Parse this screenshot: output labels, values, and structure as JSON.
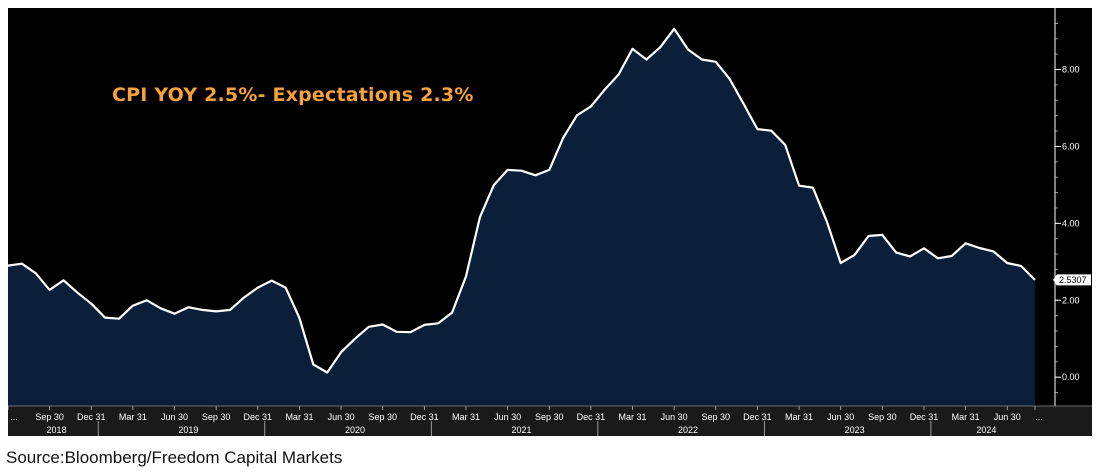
{
  "title": "CPI YOY 2.5%- Expectations 2.3%",
  "source": "Source:Bloomberg/Freedom Capital Markets",
  "colors": {
    "background": "#000000",
    "area_fill": "#0b1e3a",
    "line": "#ffffff",
    "title": "#f6a13a",
    "axis_band": "#1a1a1a"
  },
  "chart_data": {
    "type": "area",
    "series": [
      {
        "values": [
          2.9,
          2.95,
          2.7,
          2.27,
          2.52,
          2.2,
          1.91,
          1.55,
          1.52,
          1.86,
          2.0,
          1.79,
          1.65,
          1.82,
          1.75,
          1.71,
          1.75,
          2.07,
          2.33,
          2.51,
          2.33,
          1.54,
          0.33,
          0.12,
          0.65,
          1.0,
          1.31,
          1.37,
          1.18,
          1.17,
          1.36,
          1.4,
          1.68,
          2.62,
          4.16,
          4.99,
          5.39,
          5.37,
          5.25,
          5.39,
          6.22,
          6.81,
          7.04,
          7.48,
          7.87,
          8.54,
          8.26,
          8.58,
          9.06,
          8.52,
          8.26,
          8.2,
          7.75,
          7.11,
          6.45,
          6.41,
          6.04,
          4.98,
          4.93,
          4.05,
          2.97,
          3.18,
          3.67,
          3.7,
          3.24,
          3.14,
          3.35,
          3.09,
          3.15,
          3.48,
          3.36,
          3.27,
          2.97,
          2.89,
          2.53
        ]
      }
    ],
    "x_start": "2018-06",
    "x_end": "2024-08",
    "x_frequency": "monthly",
    "x_tick_labels": [
      "...",
      "Sep 30",
      "Dec 31",
      "Mar 31",
      "Jun 30",
      "Sep 30",
      "Dec 31",
      "Mar 31",
      "Jun 30",
      "Sep 30",
      "Dec 31",
      "Mar 31",
      "Jun 30",
      "Sep 30",
      "Dec 31",
      "Mar 31",
      "Jun 30",
      "Sep 30",
      "Dec 31",
      "Mar 31",
      "Jun 30",
      "Sep 30",
      "Dec 31",
      "Mar 31",
      "Jun 30",
      "..."
    ],
    "x_year_labels": [
      "2018",
      "2019",
      "2020",
      "2021",
      "2022",
      "2023",
      "2024"
    ],
    "y_ticks": [
      0,
      2,
      4,
      6,
      8
    ],
    "y_tick_labels": [
      "0.00",
      "2.00",
      "4.00",
      "6.00",
      "8.00"
    ],
    "ylim": [
      -0.75,
      9.6
    ],
    "last_value_label": "2.5307",
    "y_axis_side": "right",
    "grid": false
  }
}
